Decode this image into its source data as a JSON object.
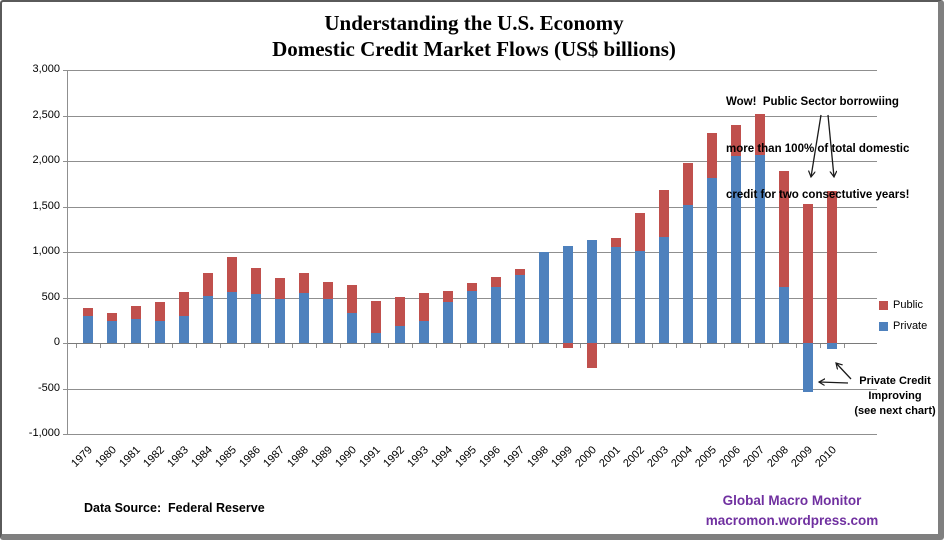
{
  "chart_data": {
    "type": "bar",
    "stacked": true,
    "title": "Understanding the U.S. Economy",
    "subtitle": "Domestic Credit Market Flows (US$ billions)",
    "categories": [
      "1979",
      "1980",
      "1981",
      "1982",
      "1983",
      "1984",
      "1985",
      "1986",
      "1987",
      "1988",
      "1989",
      "1990",
      "1991",
      "1992",
      "1993",
      "1994",
      "1995",
      "1996",
      "1997",
      "1998",
      "1999",
      "2000",
      "2001",
      "2002",
      "2003",
      "2004",
      "2005",
      "2006",
      "2007",
      "2008",
      "2009",
      "2010"
    ],
    "series": [
      {
        "name": "Private",
        "color": "#4E81BD",
        "values": [
          300,
          240,
          260,
          245,
          300,
          520,
          555,
          535,
          480,
          550,
          480,
          335,
          105,
          190,
          240,
          455,
          575,
          620,
          745,
          1000,
          1070,
          1135,
          1055,
          1015,
          1165,
          1520,
          1815,
          2050,
          2065,
          610,
          -535,
          -70
        ]
      },
      {
        "name": "Public",
        "color": "#C0504D",
        "values": [
          80,
          85,
          150,
          210,
          255,
          245,
          395,
          285,
          230,
          220,
          195,
          305,
          355,
          320,
          310,
          115,
          80,
          110,
          70,
          0,
          -50,
          -275,
          95,
          410,
          520,
          460,
          490,
          350,
          450,
          1280,
          1530,
          1670
        ]
      }
    ],
    "ylim": [
      -1000,
      3000
    ],
    "ytick_step": 500,
    "ytick_labels": [
      "3,000",
      "2,500",
      "2,000",
      "1,500",
      "1,000",
      "500",
      "0",
      "-500",
      "-1,000"
    ],
    "grid": true,
    "legend_position": "right",
    "legend_entries": [
      {
        "label": "Public",
        "color": "#C0504D"
      },
      {
        "label": "Private",
        "color": "#4E81BD"
      }
    ]
  },
  "annotations": {
    "wow": {
      "line1": "Wow!  Public Sector borrowiing",
      "line2": "more than 100% of total domestic",
      "line3": "credit for two consectutive years!"
    },
    "private_credit": {
      "line1": "Private Credit",
      "line2": "Improving",
      "line3": "(see next chart)"
    }
  },
  "footer": {
    "source": "Data Source:  Federal Reserve",
    "brand": "Global Macro Monitor",
    "url": "macromon.wordpress.com",
    "brand_color": "#7030A0"
  }
}
